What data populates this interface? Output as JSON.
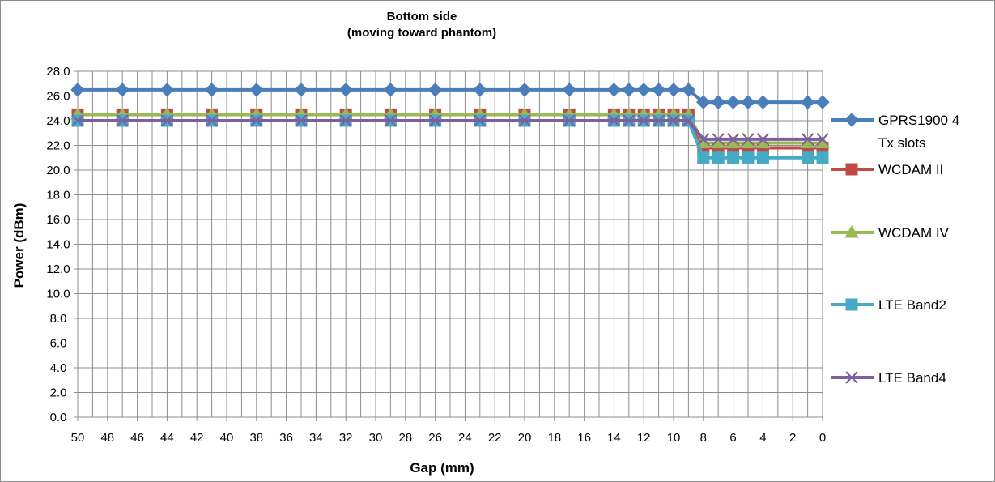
{
  "chart_data": {
    "type": "line",
    "title": "Bottom side",
    "subtitle": "(moving toward phantom)",
    "xlabel": "Gap (mm)",
    "ylabel": "Power (dBm)",
    "x_reversed": true,
    "xlim": [
      0,
      50
    ],
    "ylim": [
      0,
      28
    ],
    "y_ticks": [
      "0.0",
      "2.0",
      "4.0",
      "6.0",
      "8.0",
      "10.0",
      "12.0",
      "14.0",
      "16.0",
      "18.0",
      "20.0",
      "22.0",
      "24.0",
      "26.0",
      "28.0"
    ],
    "x_ticks": [
      "50",
      "48",
      "46",
      "44",
      "42",
      "40",
      "38",
      "36",
      "34",
      "32",
      "30",
      "28",
      "26",
      "24",
      "22",
      "20",
      "18",
      "16",
      "14",
      "12",
      "10",
      "8",
      "6",
      "4",
      "2",
      "0"
    ],
    "grid": true,
    "legend_position": "right",
    "series": [
      {
        "name": "GPRS1900  4 Tx slots",
        "color": "#4a7ebb",
        "marker": "diamond",
        "x": [
          50,
          47,
          44,
          41,
          38,
          35,
          32,
          29,
          26,
          23,
          20,
          17,
          14,
          13,
          12,
          11,
          10,
          9,
          8,
          7,
          6,
          5,
          4,
          1,
          0
        ],
        "values": [
          26.5,
          26.5,
          26.5,
          26.5,
          26.5,
          26.5,
          26.5,
          26.5,
          26.5,
          26.5,
          26.5,
          26.5,
          26.5,
          26.5,
          26.5,
          26.5,
          26.5,
          26.5,
          25.5,
          25.5,
          25.5,
          25.5,
          25.5,
          25.5,
          25.5
        ]
      },
      {
        "name": "WCDAM II",
        "color": "#be4b48",
        "marker": "square",
        "x": [
          50,
          47,
          44,
          41,
          38,
          35,
          32,
          29,
          26,
          23,
          20,
          17,
          14,
          13,
          12,
          11,
          10,
          9,
          8,
          7,
          6,
          5,
          4,
          1,
          0
        ],
        "values": [
          24.5,
          24.5,
          24.5,
          24.5,
          24.5,
          24.5,
          24.5,
          24.5,
          24.5,
          24.5,
          24.5,
          24.5,
          24.5,
          24.5,
          24.5,
          24.5,
          24.5,
          24.5,
          21.8,
          21.8,
          21.8,
          21.8,
          21.8,
          21.8,
          21.8
        ]
      },
      {
        "name": "WCDAM IV",
        "color": "#98b954",
        "marker": "triangle",
        "x": [
          50,
          47,
          44,
          41,
          38,
          35,
          32,
          29,
          26,
          23,
          20,
          17,
          14,
          13,
          12,
          11,
          10,
          9,
          8,
          7,
          6,
          5,
          4,
          1,
          0
        ],
        "values": [
          24.5,
          24.5,
          24.5,
          24.5,
          24.5,
          24.5,
          24.5,
          24.5,
          24.5,
          24.5,
          24.5,
          24.5,
          24.5,
          24.5,
          24.5,
          24.5,
          24.5,
          24.5,
          22.2,
          22.2,
          22.2,
          22.2,
          22.2,
          22.2,
          22.2
        ]
      },
      {
        "name": "LTE Band2",
        "color": "#46aac5",
        "marker": "square",
        "x": [
          50,
          47,
          44,
          41,
          38,
          35,
          32,
          29,
          26,
          23,
          20,
          17,
          14,
          13,
          12,
          11,
          10,
          9,
          8,
          7,
          6,
          5,
          4,
          1,
          0
        ],
        "values": [
          24.0,
          24.0,
          24.0,
          24.0,
          24.0,
          24.0,
          24.0,
          24.0,
          24.0,
          24.0,
          24.0,
          24.0,
          24.0,
          24.0,
          24.0,
          24.0,
          24.0,
          24.0,
          21.0,
          21.0,
          21.0,
          21.0,
          21.0,
          21.0,
          21.0
        ]
      },
      {
        "name": "LTE Band4",
        "color": "#7d5fa0",
        "marker": "x",
        "x": [
          50,
          47,
          44,
          41,
          38,
          35,
          32,
          29,
          26,
          23,
          20,
          17,
          14,
          13,
          12,
          11,
          10,
          9,
          8,
          7,
          6,
          5,
          4,
          1,
          0
        ],
        "values": [
          24.0,
          24.0,
          24.0,
          24.0,
          24.0,
          24.0,
          24.0,
          24.0,
          24.0,
          24.0,
          24.0,
          24.0,
          24.0,
          24.0,
          24.0,
          24.0,
          24.0,
          24.0,
          22.5,
          22.5,
          22.5,
          22.5,
          22.5,
          22.5,
          22.5
        ]
      }
    ]
  }
}
